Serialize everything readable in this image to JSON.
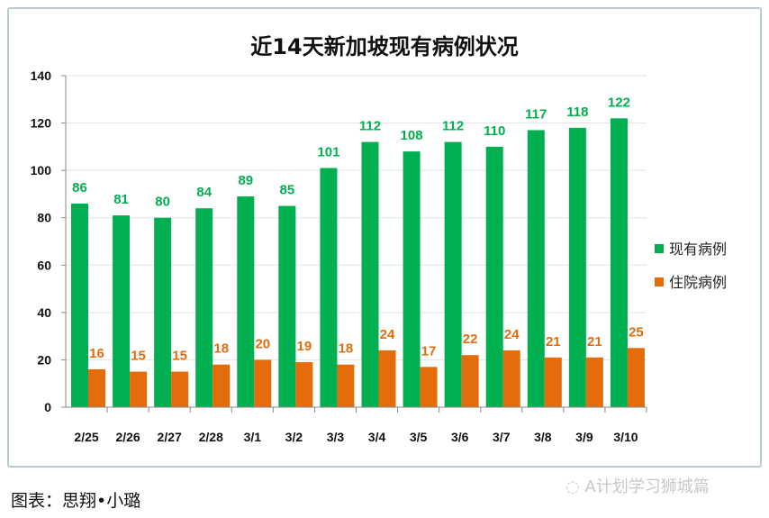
{
  "chart_data": {
    "type": "bar",
    "title": "近14天新加坡现有病例状况",
    "categories": [
      "2/25",
      "2/26",
      "2/27",
      "2/28",
      "3/1",
      "3/2",
      "3/3",
      "3/4",
      "3/5",
      "3/6",
      "3/7",
      "3/8",
      "3/9",
      "3/10"
    ],
    "series": [
      {
        "name": "现有病例",
        "color": "#00b050",
        "values": [
          86,
          81,
          80,
          84,
          89,
          85,
          101,
          112,
          108,
          112,
          110,
          117,
          118,
          122
        ]
      },
      {
        "name": "住院病例",
        "color": "#e46c0a",
        "values": [
          16,
          15,
          15,
          18,
          20,
          19,
          18,
          24,
          17,
          22,
          24,
          21,
          21,
          25
        ]
      }
    ],
    "ylim": [
      0,
      140
    ],
    "yticks": [
      0,
      20,
      40,
      60,
      80,
      100,
      120,
      140
    ],
    "grid": true,
    "legend": "right"
  },
  "caption": "图表：思翔•小璐",
  "watermark": "A计划学习狮城篇"
}
